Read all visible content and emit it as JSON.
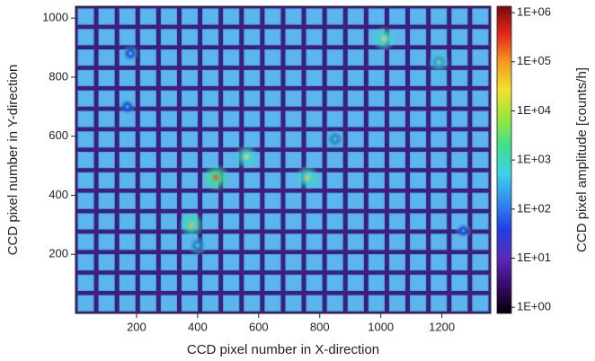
{
  "chart_data": {
    "type": "heatmap",
    "x_label": "CCD pixel number in X-direction",
    "y_label": "CCD pixel number in Y-direction",
    "xlim": [
      0,
      1360
    ],
    "ylim": [
      0,
      1040
    ],
    "xticks": [
      200,
      400,
      600,
      800,
      1000,
      1200
    ],
    "yticks": [
      200,
      400,
      600,
      800,
      1000
    ],
    "colorbar": {
      "label": "CCD pixel amplitude [counts/h]",
      "log": true,
      "lim": [
        0.75,
        1350000
      ],
      "ticks": [
        {
          "value": 1,
          "label": "1E+00"
        },
        {
          "value": 10,
          "label": "1E+01"
        },
        {
          "value": 100,
          "label": "1E+02"
        },
        {
          "value": 1000,
          "label": "1E+03"
        },
        {
          "value": 10000,
          "label": "1E+04"
        },
        {
          "value": 100000,
          "label": "1E+05"
        },
        {
          "value": 1000000,
          "label": "1E+06"
        }
      ],
      "colormap": [
        "#000000",
        "#3a0a6e",
        "#5a2ab8",
        "#1f3fe8",
        "#2f8cf0",
        "#3cd2e6",
        "#3fe08a",
        "#9ae63a",
        "#f0e22a",
        "#f59a1e",
        "#e8251c",
        "#7a0a0a"
      ]
    },
    "hotspots": {
      "x": [
        460,
        560,
        760,
        380,
        1010,
        1190,
        180,
        850,
        400,
        1270,
        170
      ],
      "y": [
        460,
        530,
        460,
        300,
        930,
        850,
        880,
        590,
        230,
        280,
        700
      ],
      "values": [
        200000,
        30000,
        40000,
        60000,
        40000,
        5000,
        500,
        2000,
        2000,
        300,
        400
      ]
    }
  }
}
